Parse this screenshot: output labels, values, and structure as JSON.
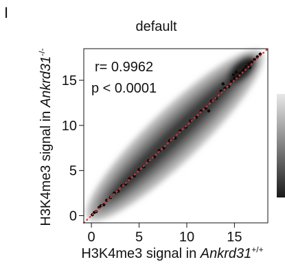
{
  "panel_label": "I",
  "chart_data": {
    "type": "scatter",
    "title": "default",
    "xlabel_prefix": "H3K4me3 signal in ",
    "xlabel_gene": "Ankrd31",
    "xlabel_sup": "+/+",
    "ylabel_prefix": "H3K4me3 signal in ",
    "ylabel_gene": "Ankrd31",
    "ylabel_sup": "-/-",
    "xlim": [
      -0.8,
      18.5
    ],
    "ylim": [
      -0.8,
      18.5
    ],
    "x_ticks": [
      0,
      5,
      10,
      15
    ],
    "y_ticks": [
      0,
      5,
      10,
      15
    ],
    "annotations": {
      "r": "r= 0.9962",
      "p": "p < 0.0001"
    },
    "reference_line": {
      "from": [
        -0.8,
        -0.8
      ],
      "to": [
        18.5,
        18.5
      ],
      "color": "#e03030",
      "style": "dotted"
    },
    "density_colorbar": {
      "colors": [
        "#e8e8e8",
        "#1a1a1a"
      ]
    },
    "points": [
      [
        0.1,
        0.1
      ],
      [
        0.3,
        0.35
      ],
      [
        0.5,
        0.45
      ],
      [
        0.8,
        0.9
      ],
      [
        1.0,
        1.1
      ],
      [
        1.3,
        1.2
      ],
      [
        1.6,
        1.7
      ],
      [
        2.0,
        2.0
      ],
      [
        2.4,
        2.5
      ],
      [
        2.8,
        2.7
      ],
      [
        3.2,
        3.3
      ],
      [
        3.6,
        3.5
      ],
      [
        4.0,
        4.1
      ],
      [
        4.5,
        4.4
      ],
      [
        5.0,
        5.1
      ],
      [
        5.5,
        5.4
      ],
      [
        6.0,
        6.1
      ],
      [
        6.6,
        6.5
      ],
      [
        7.1,
        7.2
      ],
      [
        7.6,
        7.5
      ],
      [
        8.2,
        8.3
      ],
      [
        8.8,
        8.6
      ],
      [
        9.3,
        9.4
      ],
      [
        9.9,
        9.8
      ],
      [
        10.4,
        10.5
      ],
      [
        11.0,
        10.9
      ],
      [
        11.5,
        11.6
      ],
      [
        12.0,
        11.9
      ],
      [
        12.6,
        12.7
      ],
      [
        13.1,
        13.0
      ],
      [
        13.6,
        13.8
      ],
      [
        14.0,
        14.1
      ],
      [
        14.4,
        14.3
      ],
      [
        14.7,
        14.9
      ],
      [
        15.0,
        15.2
      ],
      [
        15.3,
        15.4
      ],
      [
        15.6,
        15.8
      ],
      [
        15.9,
        16.1
      ],
      [
        16.2,
        16.5
      ],
      [
        16.5,
        16.8
      ],
      [
        16.8,
        17.0
      ],
      [
        17.1,
        17.3
      ],
      [
        17.4,
        17.6
      ],
      [
        17.7,
        17.9
      ],
      [
        15.2,
        15.9
      ],
      [
        16.0,
        16.2
      ],
      [
        16.6,
        16.4
      ],
      [
        14.9,
        15.6
      ],
      [
        13.8,
        14.6
      ],
      [
        12.3,
        11.6
      ]
    ]
  }
}
